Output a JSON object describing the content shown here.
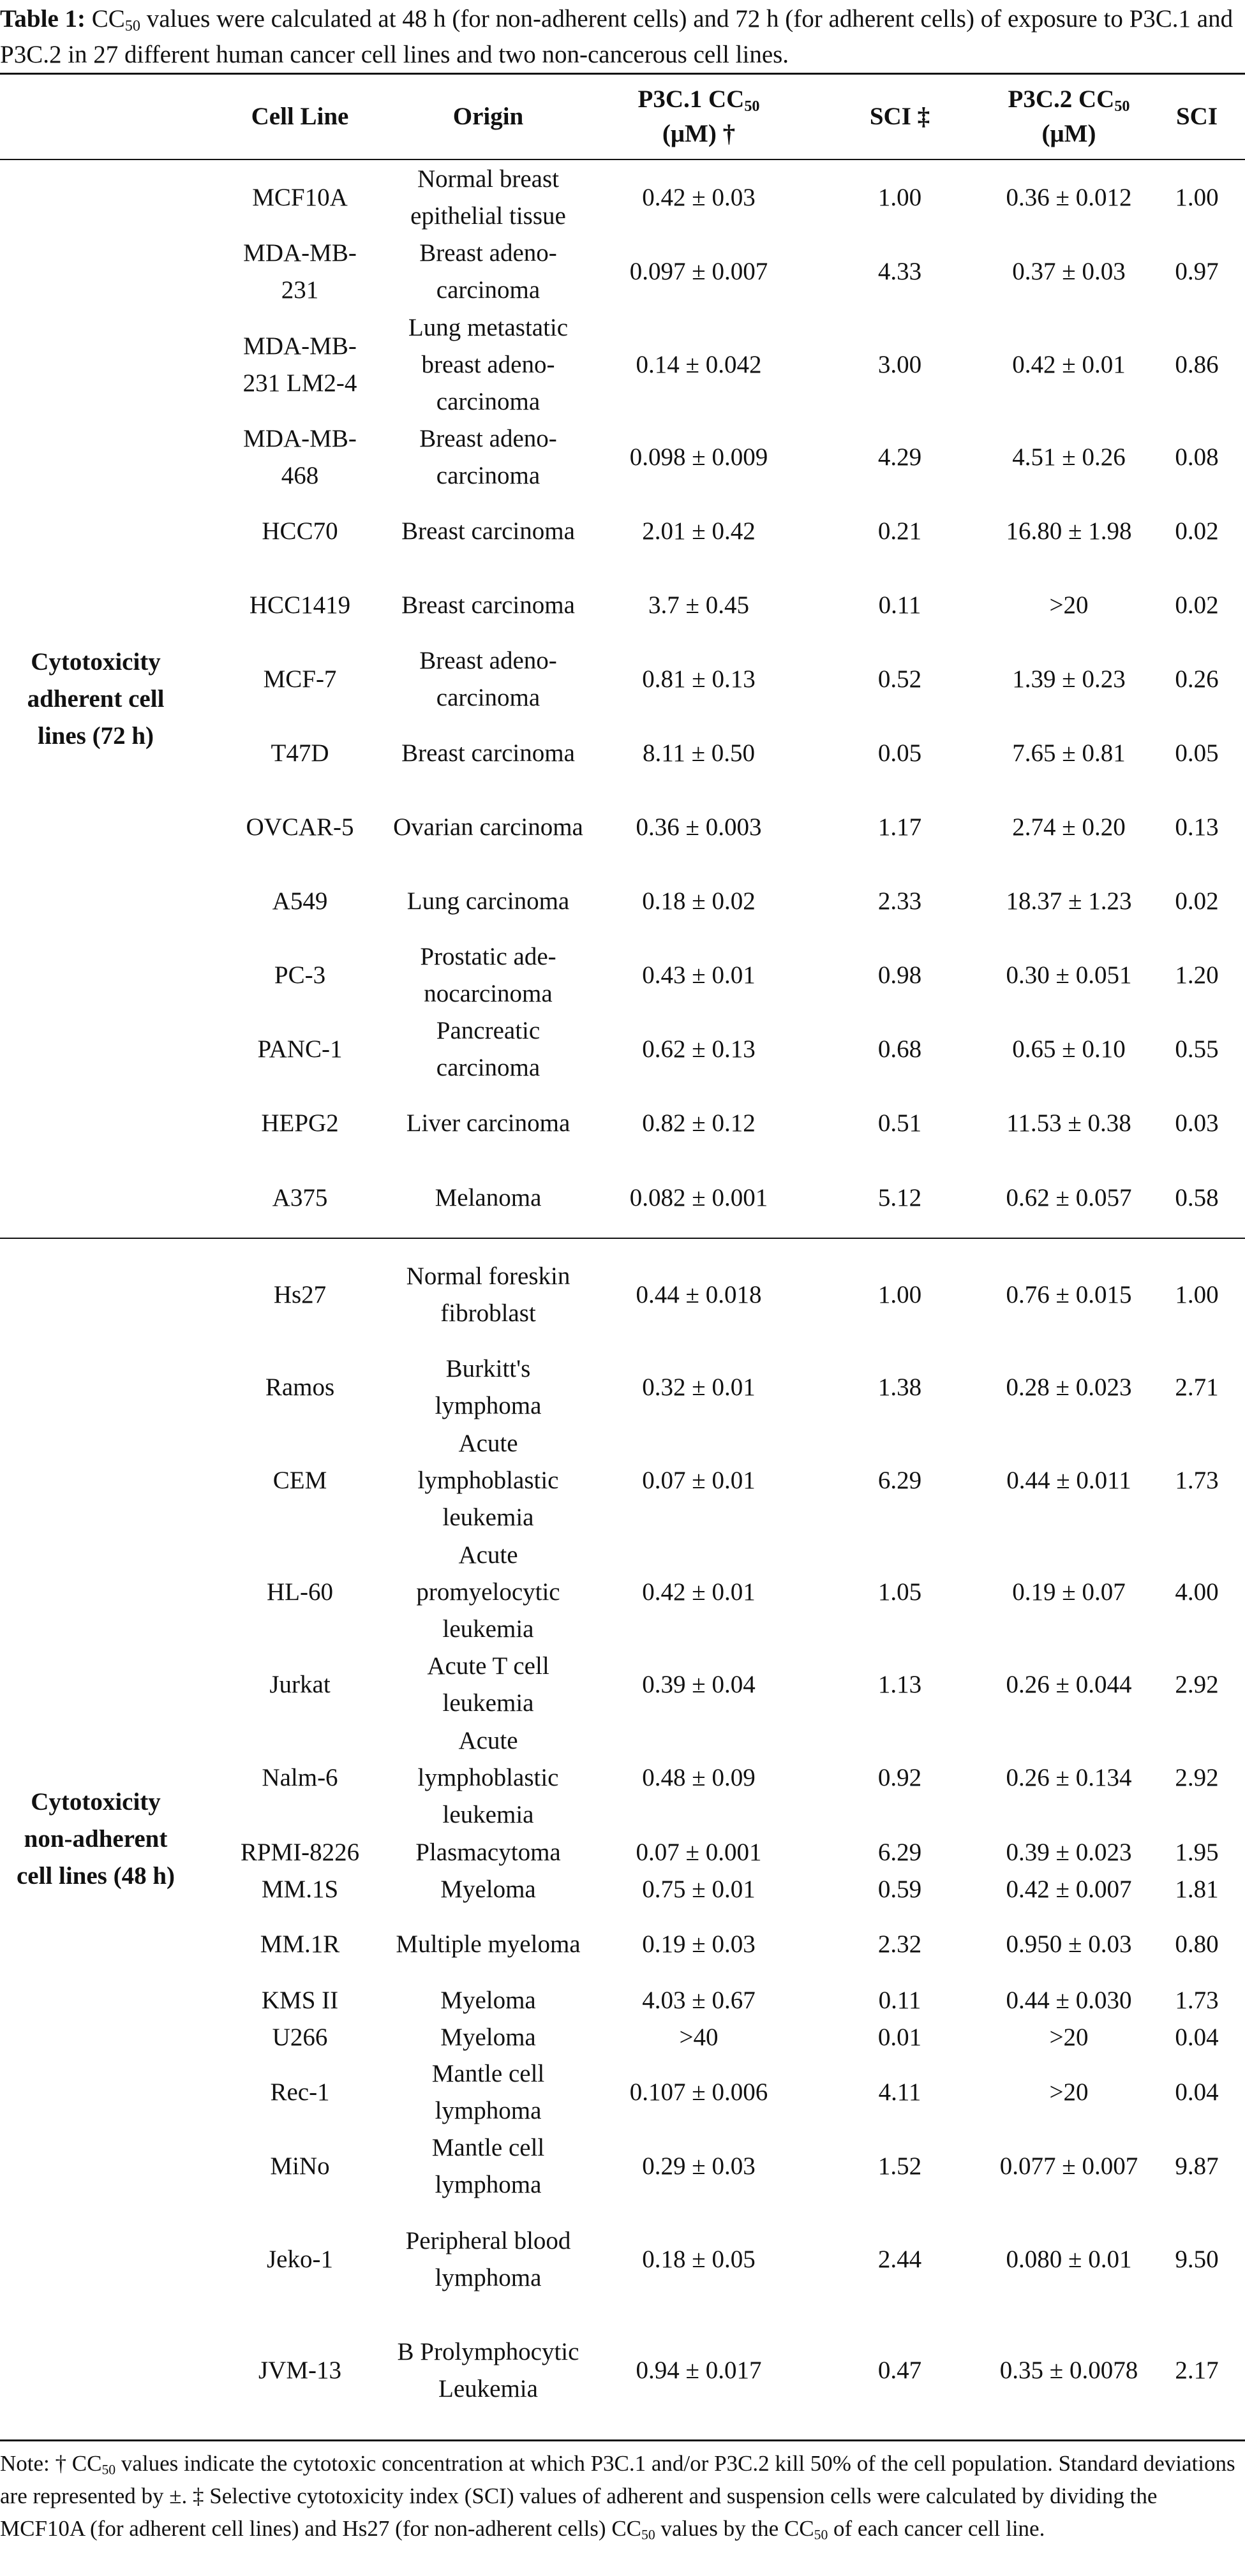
{
  "caption": {
    "label": "Table 1:",
    "parts": [
      "CC",
      "50",
      " values were calculated at 48 h (for non-adherent cells) and 72 h (for adherent cells) of exposure to P3C.1 and P3C.2 in 27 different human cancer cell lines and two non-cancerous cell lines."
    ]
  },
  "headers": {
    "cell_line": "Cell Line",
    "origin": "Origin",
    "p3c1_a": "P3C.1 CC",
    "p3c1_sub": "50",
    "p3c1_b": "(μM) †",
    "sci1": "SCI ‡",
    "p3c2_a": "P3C.2 CC",
    "p3c2_sub": "50",
    "p3c2_b": "(μM)",
    "sci2": "SCI"
  },
  "groups": {
    "adherent": "Cytotoxicity adherent cell lines (72 h)",
    "nonadherent": "Cytotoxicity non-adherent cell lines (48 h)"
  },
  "rows": [
    {
      "cell": "MCF10A",
      "origin": "Normal breast epithelial tissue",
      "p3c1": "0.42 ± 0.03",
      "sci1": "1.00",
      "p3c2": "0.36 ± 0.012",
      "sci2": "1.00"
    },
    {
      "cell": "MDA-MB-231",
      "origin": "Breast adeno-carcinoma",
      "p3c1": "0.097 ± 0.007",
      "sci1": "4.33",
      "p3c2": "0.37 ± 0.03",
      "sci2": "0.97"
    },
    {
      "cell": "MDA-MB-231 LM2-4",
      "origin": "Lung metastatic breast adeno-carcinoma",
      "p3c1": "0.14 ± 0.042",
      "sci1": "3.00",
      "p3c2": "0.42 ± 0.01",
      "sci2": "0.86"
    },
    {
      "cell": "MDA-MB-468",
      "origin": "Breast adeno-carcinoma",
      "p3c1": "0.098 ± 0.009",
      "sci1": "4.29",
      "p3c2": "4.51 ± 0.26",
      "sci2": "0.08"
    },
    {
      "cell": "HCC70",
      "origin": "Breast carcinoma",
      "p3c1": "2.01 ± 0.42",
      "sci1": "0.21",
      "p3c2": "16.80 ± 1.98",
      "sci2": "0.02"
    },
    {
      "cell": "HCC1419",
      "origin": "Breast carcinoma",
      "p3c1": "3.7 ± 0.45",
      "sci1": "0.11",
      "p3c2": ">20",
      "sci2": "0.02"
    },
    {
      "cell": "MCF-7",
      "origin": "Breast adeno-carcinoma",
      "p3c1": "0.81 ± 0.13",
      "sci1": "0.52",
      "p3c2": "1.39 ± 0.23",
      "sci2": "0.26"
    },
    {
      "cell": "T47D",
      "origin": "Breast carcinoma",
      "p3c1": "8.11 ± 0.50",
      "sci1": "0.05",
      "p3c2": "7.65 ± 0.81",
      "sci2": "0.05"
    },
    {
      "cell": "OVCAR-5",
      "origin": "Ovarian carcinoma",
      "p3c1": "0.36 ± 0.003",
      "sci1": "1.17",
      "p3c2": "2.74 ± 0.20",
      "sci2": "0.13"
    },
    {
      "cell": "A549",
      "origin": "Lung carcinoma",
      "p3c1": "0.18 ± 0.02",
      "sci1": "2.33",
      "p3c2": "18.37 ± 1.23",
      "sci2": "0.02"
    },
    {
      "cell": "PC-3",
      "origin": "Prostatic ade-nocarcinoma",
      "p3c1": "0.43 ± 0.01",
      "sci1": "0.98",
      "p3c2": "0.30 ± 0.051",
      "sci2": "1.20"
    },
    {
      "cell": "PANC-1",
      "origin": "Pancreatic carcinoma",
      "p3c1": "0.62 ± 0.13",
      "sci1": "0.68",
      "p3c2": "0.65 ± 0.10",
      "sci2": "0.55"
    },
    {
      "cell": "HEPG2",
      "origin": "Liver carcinoma",
      "p3c1": "0.82 ± 0.12",
      "sci1": "0.51",
      "p3c2": "11.53 ± 0.38",
      "sci2": "0.03"
    },
    {
      "cell": "A375",
      "origin": "Melanoma",
      "p3c1": "0.082 ± 0.001",
      "sci1": "5.12",
      "p3c2": "0.62 ± 0.057",
      "sci2": "0.58"
    },
    {
      "cell": "Hs27",
      "origin": "Normal foreskin fibroblast",
      "p3c1": "0.44 ± 0.018",
      "sci1": "1.00",
      "p3c2": "0.76 ± 0.015",
      "sci2": "1.00"
    },
    {
      "cell": "Ramos",
      "origin": "Burkitt's lymphoma",
      "p3c1": "0.32 ± 0.01",
      "sci1": "1.38",
      "p3c2": "0.28 ± 0.023",
      "sci2": "2.71"
    },
    {
      "cell": "CEM",
      "origin": "Acute lymphoblastic leukemia",
      "p3c1": "0.07 ± 0.01",
      "sci1": "6.29",
      "p3c2": "0.44 ± 0.011",
      "sci2": "1.73"
    },
    {
      "cell": "HL-60",
      "origin": "Acute promyelocytic leukemia",
      "p3c1": "0.42 ± 0.01",
      "sci1": "1.05",
      "p3c2": "0.19 ± 0.07",
      "sci2": "4.00"
    },
    {
      "cell": "Jurkat",
      "origin": "Acute T cell leukemia",
      "p3c1": "0.39 ± 0.04",
      "sci1": "1.13",
      "p3c2": "0.26 ± 0.044",
      "sci2": "2.92"
    },
    {
      "cell": "Nalm-6",
      "origin": "Acute lymphoblastic leukemia",
      "p3c1": "0.48 ± 0.09",
      "sci1": "0.92",
      "p3c2": "0.26 ± 0.134",
      "sci2": "2.92"
    },
    {
      "cell": "RPMI-8226",
      "origin": "Plasmacytoma",
      "p3c1": "0.07 ± 0.001",
      "sci1": "6.29",
      "p3c2": "0.39 ± 0.023",
      "sci2": "1.95"
    },
    {
      "cell": "MM.1S",
      "origin": "Myeloma",
      "p3c1": "0.75 ± 0.01",
      "sci1": "0.59",
      "p3c2": "0.42 ± 0.007",
      "sci2": "1.81"
    },
    {
      "cell": "MM.1R",
      "origin": "Multiple myeloma",
      "p3c1": "0.19 ± 0.03",
      "sci1": "2.32",
      "p3c2": "0.950 ± 0.03",
      "sci2": "0.80"
    },
    {
      "cell": "KMS II",
      "origin": "Myeloma",
      "p3c1": "4.03 ± 0.67",
      "sci1": "0.11",
      "p3c2": "0.44 ± 0.030",
      "sci2": "1.73"
    },
    {
      "cell": "U266",
      "origin": "Myeloma",
      "p3c1": ">40",
      "sci1": "0.01",
      "p3c2": ">20",
      "sci2": "0.04"
    },
    {
      "cell": "Rec-1",
      "origin": "Mantle cell lymphoma",
      "p3c1": "0.107 ± 0.006",
      "sci1": "4.11",
      "p3c2": ">20",
      "sci2": "0.04"
    },
    {
      "cell": "MiNo",
      "origin": "Mantle cell lymphoma",
      "p3c1": "0.29 ± 0.03",
      "sci1": "1.52",
      "p3c2": "0.077 ± 0.007",
      "sci2": "9.87"
    },
    {
      "cell": "Jeko-1",
      "origin": "Peripheral blood lymphoma",
      "p3c1": "0.18 ± 0.05",
      "sci1": "2.44",
      "p3c2": "0.080 ± 0.01",
      "sci2": "9.50"
    },
    {
      "cell": "JVM-13",
      "origin": "B Prolymphocytic Leukemia",
      "p3c1": "0.94 ± 0.017",
      "sci1": "0.47",
      "p3c2": "0.35 ± 0.0078",
      "sci2": "2.17"
    }
  ],
  "note": {
    "p1": "Note: † CC",
    "s1": "50",
    "p2": " values indicate the cytotoxic concentration at which P3C.1 and/or P3C.2 kill 50% of the cell population. Standard deviations are represented by ±. ‡ Selective cytotoxicity index (SCI) values of adherent and suspension cells were calculated by dividing the MCF10A (for adherent cell lines) and Hs27 (for non-adherent cells) CC",
    "s2": "50",
    "p3": " values by the CC",
    "s3": "50",
    "p4": " of each cancer cell line."
  }
}
